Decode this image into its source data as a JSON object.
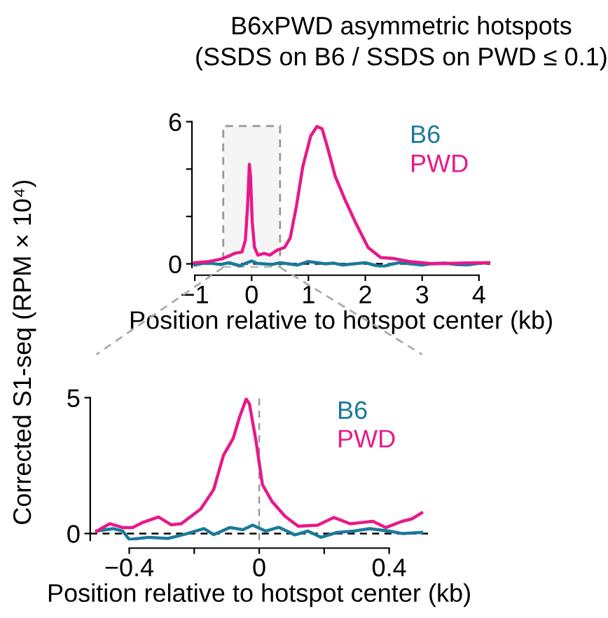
{
  "chart_data": [
    {
      "type": "line",
      "title": "B6xPWD asymmetric hotspots",
      "subtitle": "(SSDS on B6 / SSDS on PWD ≤ 0.1)",
      "xlabel": "Position relative to hotspot center (kb)",
      "ylabel": "Corrected S1-seq (RPM × 10⁴)",
      "xlim": [
        -1.05,
        4.2
      ],
      "ylim": [
        -0.15,
        6
      ],
      "xticks": [
        -1,
        0,
        1,
        2,
        3,
        4
      ],
      "yticks": [
        0,
        {
          "value": 2,
          "label": null
        },
        {
          "value": 4,
          "label": null
        },
        6
      ],
      "legend": "top right",
      "grid": false,
      "marker": "none",
      "line_style": "solid",
      "ref_lines": [
        {
          "axis": "y",
          "value": 0,
          "line_style": "dashed",
          "color": "#000000"
        }
      ],
      "bands": [
        {
          "axis": "x",
          "from": -0.5,
          "to": 0.5,
          "color": "#999999"
        }
      ],
      "series": [
        {
          "name": "B6",
          "color": "#1a7a9a",
          "x": [
            -1,
            -0.85,
            -0.7,
            -0.55,
            -0.4,
            -0.3,
            -0.2,
            -0.1,
            0,
            0.1,
            0.2,
            0.35,
            0.5,
            0.65,
            0.8,
            0.9,
            1.0,
            1.15,
            1.3,
            1.45,
            1.6,
            1.8,
            2.0,
            2.15,
            2.3,
            2.45,
            2.6,
            2.8,
            3.0,
            3.2,
            3.4,
            3.6,
            3.8,
            4.0,
            4.2
          ],
          "values": [
            -0.05,
            0.02,
            0.02,
            -0.03,
            0.05,
            -0.02,
            -0.08,
            0.03,
            0.12,
            0.02,
            0.0,
            -0.03,
            0.05,
            0.0,
            -0.05,
            0.02,
            0.1,
            0.05,
            0.0,
            0.03,
            -0.05,
            0.0,
            0.05,
            -0.05,
            -0.12,
            -0.02,
            0.05,
            0.0,
            -0.05,
            0.02,
            0.03,
            -0.03,
            -0.04,
            0.02,
            0.05
          ]
        },
        {
          "name": "PWD",
          "color": "#e8188a",
          "x": [
            -1,
            -0.75,
            -0.54,
            -0.4,
            -0.29,
            -0.17,
            -0.11,
            -0.07,
            -0.04,
            -0.02,
            0.01,
            0.05,
            0.11,
            0.22,
            0.32,
            0.45,
            0.58,
            0.68,
            0.79,
            0.9,
            1.04,
            1.15,
            1.24,
            1.33,
            1.47,
            1.65,
            1.83,
            2.05,
            2.27,
            2.48,
            2.77,
            3.2,
            3.78,
            4.2
          ],
          "values": [
            0.05,
            0.1,
            0.2,
            0.33,
            0.45,
            0.5,
            1.0,
            2.5,
            4.2,
            3.7,
            1.8,
            0.7,
            0.37,
            0.44,
            0.37,
            0.58,
            0.69,
            1.1,
            2.46,
            4.1,
            5.4,
            5.8,
            5.7,
            4.96,
            3.7,
            2.67,
            1.73,
            0.69,
            0.27,
            0.23,
            0.1,
            0.0,
            0.04,
            0.05
          ]
        }
      ]
    },
    {
      "type": "line",
      "xlabel": "Position relative to hotspot center (kb)",
      "xlim": [
        -0.52,
        0.52
      ],
      "ylim": [
        -0.25,
        5
      ],
      "xticks": [
        -0.4,
        {
          "value": -0.2,
          "label": null
        },
        0,
        {
          "value": 0.2,
          "label": null
        },
        0.4
      ],
      "yticks": [
        0,
        5
      ],
      "legend": "top right",
      "grid": false,
      "marker": "none",
      "line_style": "solid",
      "ref_lines": [
        {
          "axis": "y",
          "value": 0,
          "line_style": "dashed",
          "color": "#000000"
        },
        {
          "axis": "x",
          "value": 0,
          "line_style": "dashed",
          "color": "#999999"
        }
      ],
      "series": [
        {
          "name": "B6",
          "color": "#1a7a9a",
          "x": [
            -0.5,
            -0.45,
            -0.42,
            -0.4,
            -0.34,
            -0.28,
            -0.22,
            -0.17,
            -0.14,
            -0.09,
            -0.05,
            -0.02,
            0.02,
            0.06,
            0.11,
            0.15,
            0.19,
            0.24,
            0.29,
            0.34,
            0.4,
            0.44,
            0.5
          ],
          "values": [
            0.09,
            0.18,
            0.09,
            -0.22,
            -0.14,
            -0.18,
            0.0,
            0.18,
            -0.04,
            0.22,
            0.14,
            0.31,
            0.09,
            0.23,
            -0.05,
            0.09,
            -0.14,
            0.04,
            0.09,
            0.18,
            0.09,
            0.0,
            0.04
          ]
        },
        {
          "name": "PWD",
          "color": "#e8188a",
          "x": [
            -0.5,
            -0.46,
            -0.42,
            -0.39,
            -0.36,
            -0.31,
            -0.27,
            -0.24,
            -0.21,
            -0.18,
            -0.14,
            -0.11,
            -0.08,
            -0.06,
            -0.04,
            -0.03,
            -0.01,
            0.01,
            0.04,
            0.08,
            0.12,
            0.18,
            0.23,
            0.28,
            0.35,
            0.39,
            0.44,
            0.47,
            0.5
          ],
          "values": [
            0.09,
            0.36,
            0.22,
            0.22,
            0.4,
            0.61,
            0.32,
            0.36,
            0.63,
            0.9,
            1.62,
            2.88,
            3.5,
            4.3,
            4.95,
            4.77,
            3.42,
            1.8,
            1.17,
            0.63,
            0.27,
            0.31,
            0.59,
            0.36,
            0.45,
            0.22,
            0.45,
            0.54,
            0.76
          ]
        }
      ]
    }
  ]
}
